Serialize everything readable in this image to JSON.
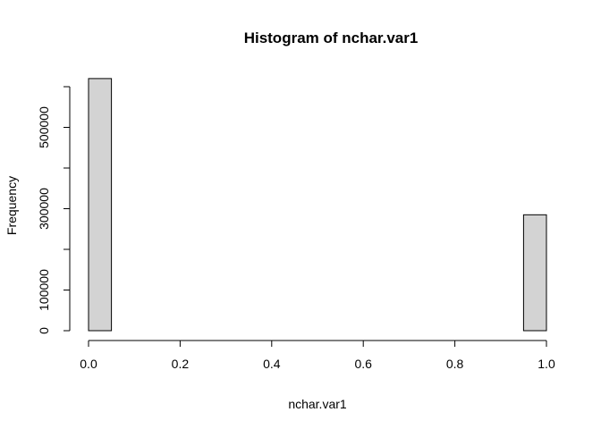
{
  "chart_data": {
    "type": "bar",
    "title": "Histogram of nchar.var1",
    "xlabel": "nchar.var1",
    "ylabel": "Frequency",
    "bar_color": "#d3d3d3",
    "border_color": "#000000",
    "xlim": [
      0,
      1
    ],
    "ylim": [
      0,
      600000
    ],
    "bins": [
      {
        "x0": 0.0,
        "x1": 0.05,
        "count": 620000
      },
      {
        "x0": 0.05,
        "x1": 0.1,
        "count": 0
      },
      {
        "x0": 0.1,
        "x1": 0.15,
        "count": 0
      },
      {
        "x0": 0.15,
        "x1": 0.2,
        "count": 0
      },
      {
        "x0": 0.2,
        "x1": 0.25,
        "count": 0
      },
      {
        "x0": 0.25,
        "x1": 0.3,
        "count": 0
      },
      {
        "x0": 0.3,
        "x1": 0.35,
        "count": 0
      },
      {
        "x0": 0.35,
        "x1": 0.4,
        "count": 0
      },
      {
        "x0": 0.4,
        "x1": 0.45,
        "count": 0
      },
      {
        "x0": 0.45,
        "x1": 0.5,
        "count": 0
      },
      {
        "x0": 0.5,
        "x1": 0.55,
        "count": 0
      },
      {
        "x0": 0.55,
        "x1": 0.6,
        "count": 0
      },
      {
        "x0": 0.6,
        "x1": 0.65,
        "count": 0
      },
      {
        "x0": 0.65,
        "x1": 0.7,
        "count": 0
      },
      {
        "x0": 0.7,
        "x1": 0.75,
        "count": 0
      },
      {
        "x0": 0.75,
        "x1": 0.8,
        "count": 0
      },
      {
        "x0": 0.8,
        "x1": 0.85,
        "count": 0
      },
      {
        "x0": 0.85,
        "x1": 0.9,
        "count": 0
      },
      {
        "x0": 0.9,
        "x1": 0.95,
        "count": 0
      },
      {
        "x0": 0.95,
        "x1": 1.0,
        "count": 285000
      }
    ],
    "x_ticks": [
      0.0,
      0.2,
      0.4,
      0.6,
      0.8,
      1.0
    ],
    "x_tick_labels": [
      "0.0",
      "0.2",
      "0.4",
      "0.6",
      "0.8",
      "1.0"
    ],
    "y_ticks": [
      0,
      100000,
      300000,
      500000
    ],
    "y_tick_labels": [
      "0",
      "100000",
      "300000",
      "500000"
    ],
    "y_minor_ticks": [
      200000,
      400000,
      600000
    ],
    "grid": false,
    "legend": "none"
  }
}
